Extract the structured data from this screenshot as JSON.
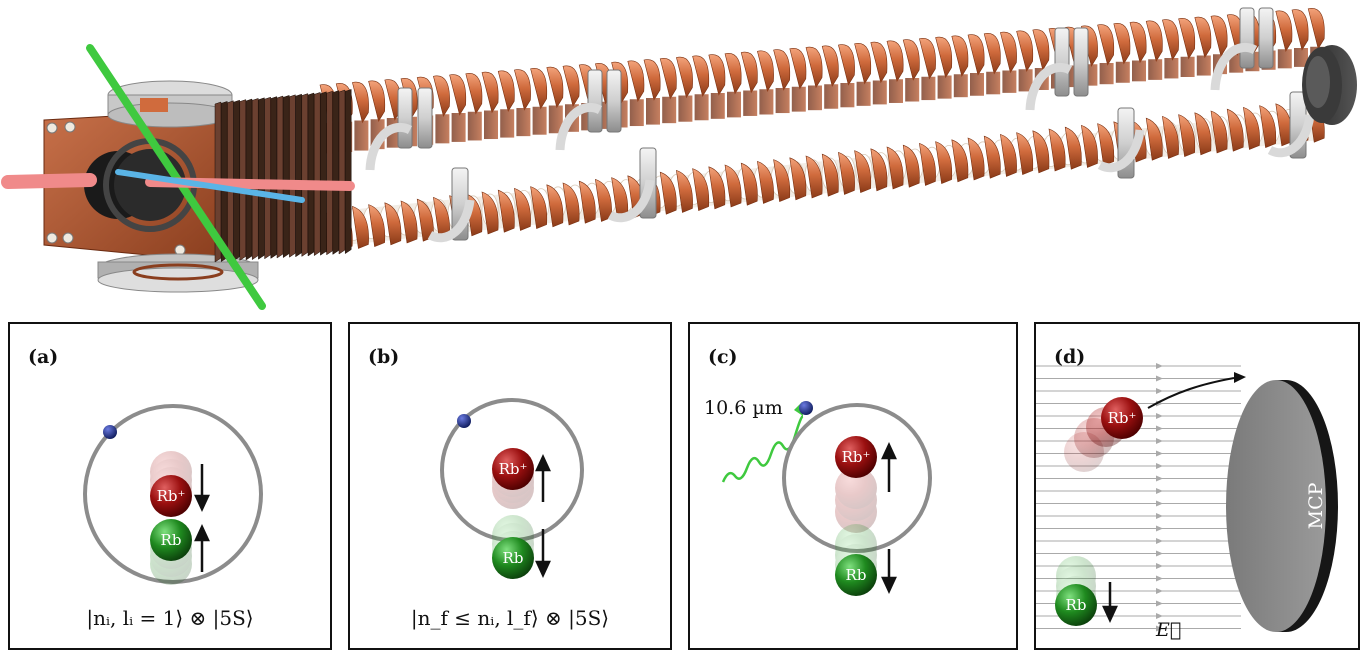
{
  "panels": [
    {
      "label": "(a)",
      "caption": "|nᵢ, lᵢ = 1⟩ ⊗ |5S⟩",
      "ion": "Rb⁺",
      "atom": "Rb"
    },
    {
      "label": "(b)",
      "caption": "|n_f ≤ nᵢ, l_f⟩ ⊗ |5S⟩",
      "ion": "Rb⁺",
      "atom": "Rb"
    },
    {
      "label": "(c)",
      "photon_label": "10.6 µm",
      "ion": "Rb⁺",
      "atom": "Rb"
    },
    {
      "label": "(d)",
      "ion": "Rb⁺",
      "atom": "Rb",
      "detector": "MCP",
      "field": "E⃗"
    }
  ],
  "colors": {
    "copper": "#c7623a",
    "ion_red": "#9b1010",
    "atom_green": "#1f8a1f",
    "electron_blue": "#0d1a7a",
    "orbit_gray": "#8c8c8c",
    "laser_green": "#4ad44a",
    "laser_pink": "#f08a8a",
    "laser_blue": "#5ab4e6"
  }
}
